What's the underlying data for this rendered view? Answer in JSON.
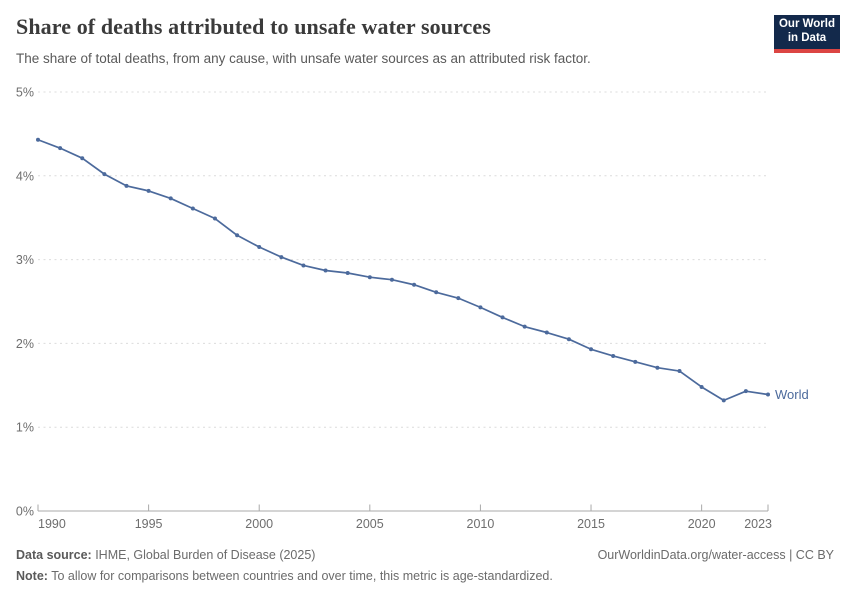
{
  "header": {
    "title": "Share of deaths attributed to unsafe water sources",
    "subtitle": "The share of total deaths, from any cause, with unsafe water sources as an attributed risk factor.",
    "logo": {
      "line1": "Our World",
      "line2": "in Data"
    }
  },
  "chart_data": {
    "type": "line",
    "title": "Share of deaths attributed to unsafe water sources",
    "xlabel": "",
    "ylabel": "",
    "x": [
      1990,
      1991,
      1992,
      1993,
      1994,
      1995,
      1996,
      1997,
      1998,
      1999,
      2000,
      2001,
      2002,
      2003,
      2004,
      2005,
      2006,
      2007,
      2008,
      2009,
      2010,
      2011,
      2012,
      2013,
      2014,
      2015,
      2016,
      2017,
      2018,
      2019,
      2020,
      2021,
      2022,
      2023
    ],
    "series": [
      {
        "name": "World",
        "color": "#4C6A9C",
        "values": [
          4.43,
          4.33,
          4.21,
          4.02,
          3.88,
          3.82,
          3.73,
          3.61,
          3.49,
          3.29,
          3.15,
          3.03,
          2.93,
          2.87,
          2.84,
          2.79,
          2.76,
          2.7,
          2.61,
          2.54,
          2.43,
          2.31,
          2.2,
          2.13,
          2.05,
          1.93,
          1.85,
          1.78,
          1.71,
          1.67,
          1.48,
          1.32,
          1.43,
          1.39
        ]
      }
    ],
    "ylim": [
      0,
      5
    ],
    "yticks": [
      0,
      1,
      2,
      3,
      4,
      5
    ],
    "ytick_suffix": "%",
    "xticks": [
      1990,
      1995,
      2000,
      2005,
      2010,
      2015,
      2020,
      2023
    ],
    "grid": "horizontal-dashed",
    "legend_position": "end-of-line"
  },
  "colors": {
    "line": "#4C6A9C",
    "grid": "#dcdcdc",
    "axis": "#a9a9a9",
    "tick_label": "#6e6e6e",
    "accent_logo_bg": "#13294b",
    "accent_logo_stripe": "#dc4543"
  },
  "footer": {
    "datasource_label": "Data source:",
    "datasource_text": " IHME, Global Burden of Disease (2025)",
    "link": "OurWorldinData.org/water-access | CC BY",
    "note_label": "Note:",
    "note_text": " To allow for comparisons between countries and over time, this metric is age-standardized."
  }
}
